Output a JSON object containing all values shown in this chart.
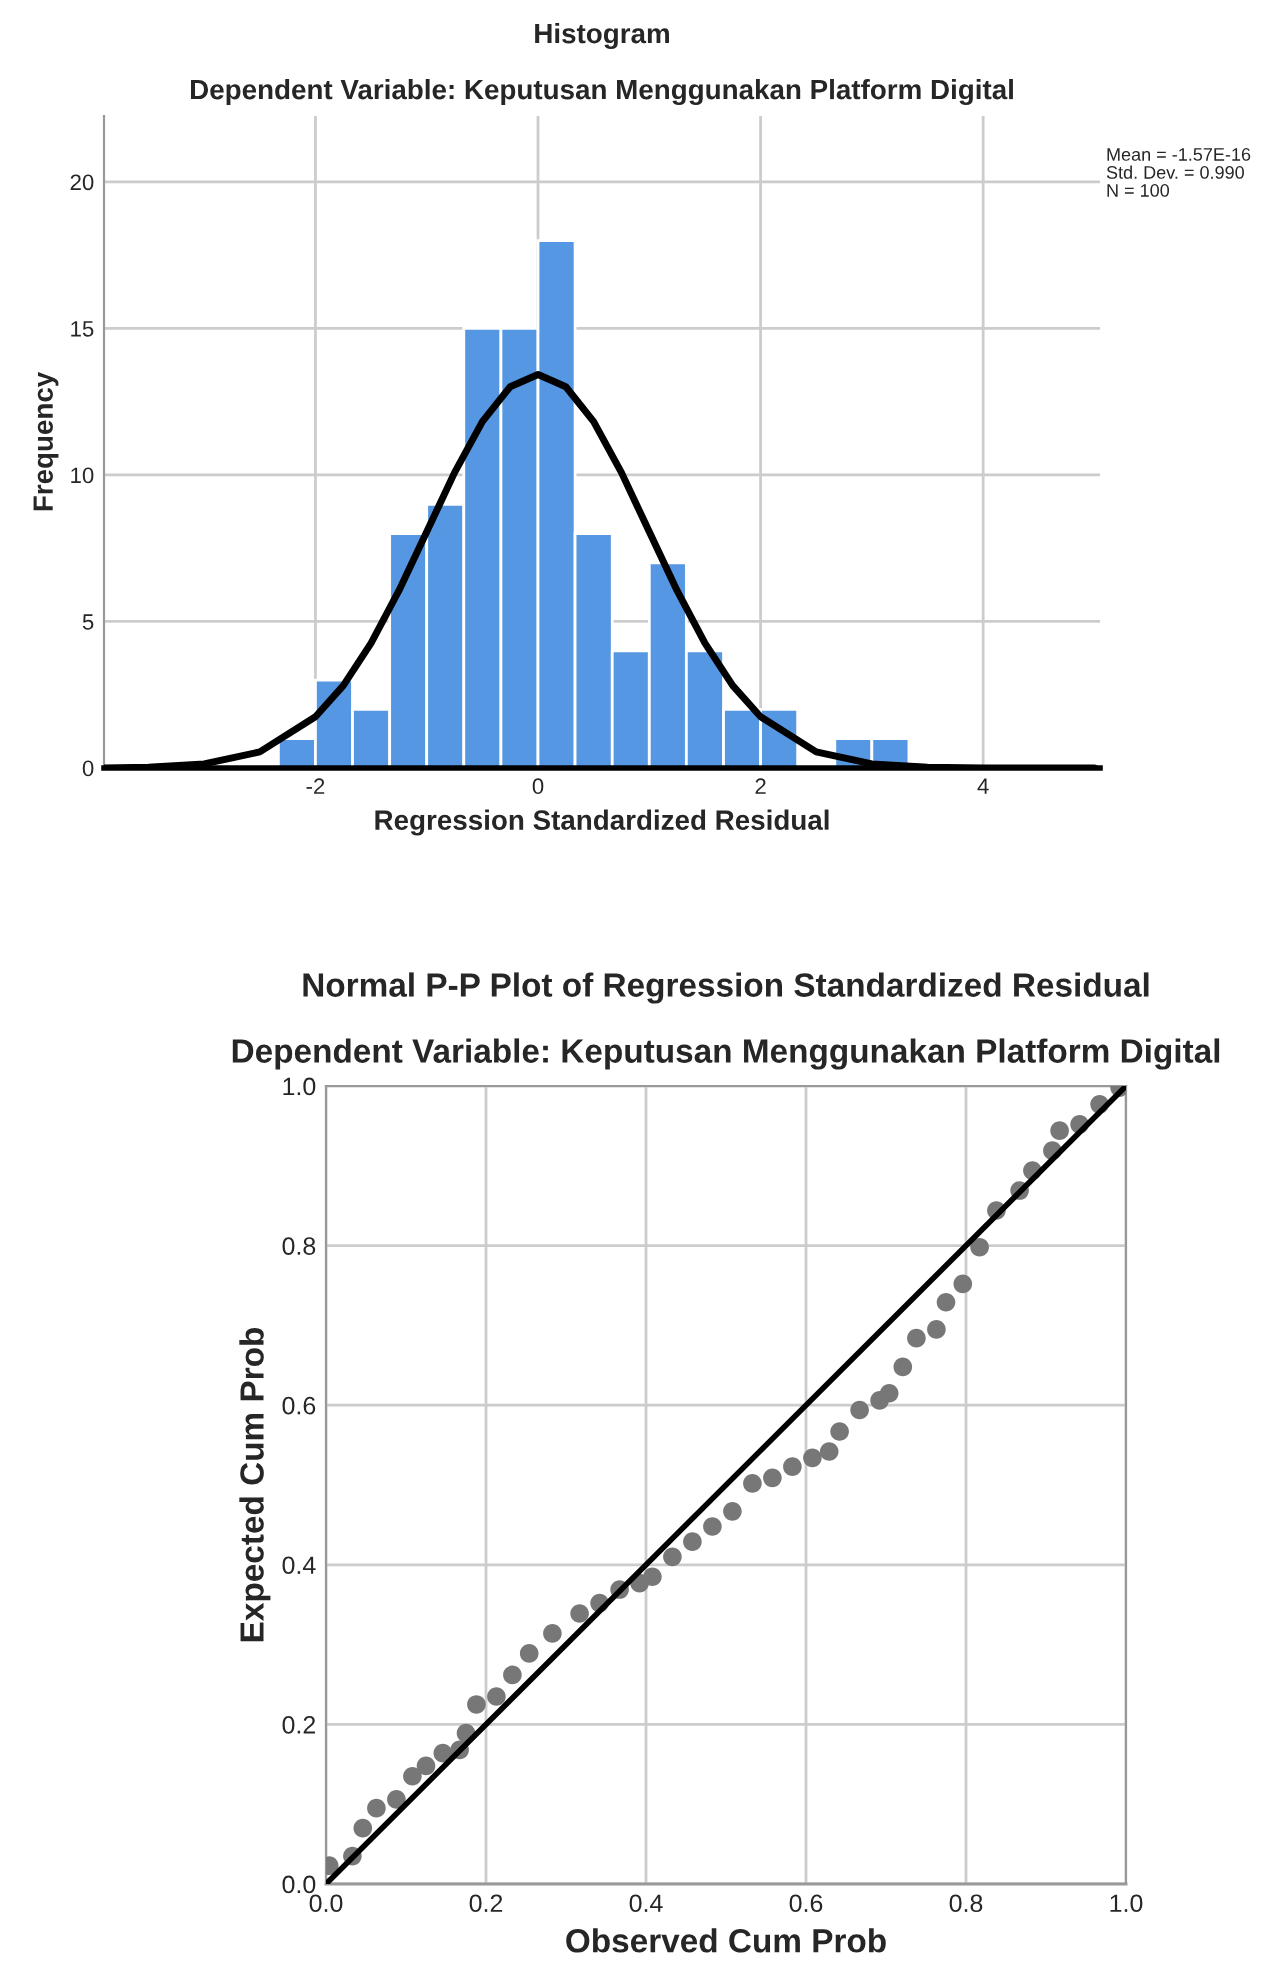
{
  "chart_data": [
    {
      "type": "histogram",
      "title": "Histogram",
      "subtitle": "Dependent Variable: Keputusan Menggunakan Platform Digital",
      "xlabel": "Regression Standardized Residual",
      "ylabel": "Frequency",
      "bins": [
        -2.333,
        -2.0,
        -1.667,
        -1.333,
        -1.0,
        -0.667,
        -0.333,
        0.0,
        0.333,
        0.667,
        1.0,
        1.333,
        1.667,
        2.0,
        2.333,
        2.667,
        3.0,
        3.333
      ],
      "values": [
        1,
        3,
        2,
        8,
        9,
        15,
        15,
        18,
        8,
        4,
        7,
        4,
        2,
        2,
        0,
        1,
        1
      ],
      "color": "#5597e2",
      "series": [
        {
          "type": "line",
          "color": "#000000",
          "x": [
            -3.9,
            -3.5,
            -3.0,
            -2.5,
            -2.0,
            -1.75,
            -1.5,
            -1.25,
            -1.0,
            -0.75,
            -0.5,
            -0.25,
            0.0,
            0.25,
            0.5,
            0.75,
            1.0,
            1.25,
            1.5,
            1.75,
            2.0,
            2.5,
            3.0,
            3.5,
            4.0,
            4.5,
            5.0
          ],
          "values": [
            0.0,
            0.03,
            0.14,
            0.55,
            1.75,
            2.81,
            4.26,
            6.05,
            8.06,
            10.08,
            11.82,
            13.01,
            13.43,
            13.01,
            11.82,
            10.08,
            8.06,
            6.05,
            4.26,
            2.81,
            1.75,
            0.55,
            0.14,
            0.03,
            0.0,
            0.0,
            0.0
          ]
        }
      ],
      "xlim": [
        -3.9,
        5.05
      ],
      "xticks": [
        -2,
        0,
        2,
        4
      ],
      "ylim": [
        0,
        22.25
      ],
      "yticks": [
        0,
        5,
        10,
        15,
        20
      ],
      "grid": true,
      "annotations": [
        "Mean = -1.57E-16",
        "Std. Dev. = 0.990",
        "N = 100"
      ]
    },
    {
      "type": "scatter",
      "title": "Normal P-P Plot of Regression Standardized Residual",
      "subtitle": "Dependent Variable: Keputusan Menggunakan Platform Digital",
      "xlabel": "Observed Cum Prob",
      "ylabel": "Expected Cum Prob",
      "series": [
        {
          "type": "scatter",
          "color": "#777777",
          "marker": "circle",
          "x": [
            0.004,
            0.033,
            0.046,
            0.063,
            0.088,
            0.108,
            0.125,
            0.146,
            0.167,
            0.175,
            0.188,
            0.213,
            0.233,
            0.254,
            0.283,
            0.317,
            0.342,
            0.367,
            0.392,
            0.408,
            0.433,
            0.458,
            0.483,
            0.508,
            0.533,
            0.558,
            0.583,
            0.608,
            0.629,
            0.642,
            0.667,
            0.692,
            0.704,
            0.721,
            0.738,
            0.763,
            0.775,
            0.796,
            0.817,
            0.838,
            0.867,
            0.883,
            0.908,
            0.917,
            0.942,
            0.967,
            0.992
          ],
          "values": [
            0.023,
            0.035,
            0.07,
            0.095,
            0.106,
            0.135,
            0.148,
            0.164,
            0.168,
            0.189,
            0.225,
            0.235,
            0.262,
            0.289,
            0.314,
            0.339,
            0.352,
            0.369,
            0.377,
            0.385,
            0.41,
            0.429,
            0.448,
            0.467,
            0.502,
            0.509,
            0.523,
            0.534,
            0.542,
            0.567,
            0.594,
            0.606,
            0.615,
            0.648,
            0.684,
            0.695,
            0.729,
            0.752,
            0.798,
            0.844,
            0.869,
            0.894,
            0.919,
            0.944,
            0.952,
            0.977,
            0.998
          ]
        },
        {
          "type": "line",
          "color": "#000000",
          "x": [
            0.0,
            1.0
          ],
          "values": [
            0.0,
            1.0
          ]
        }
      ],
      "xlim": [
        0,
        1
      ],
      "ylim": [
        0,
        1
      ],
      "xticks": [
        {
          "value": 0.0,
          "label": "0.0"
        },
        {
          "value": 0.2,
          "label": "0.2"
        },
        {
          "value": 0.4,
          "label": "0.4"
        },
        {
          "value": 0.6,
          "label": "0.6"
        },
        {
          "value": 0.8,
          "label": "0.8"
        },
        {
          "value": 1.0,
          "label": "1.0"
        }
      ],
      "yticks": [
        {
          "value": 0.0,
          "label": "0.0"
        },
        {
          "value": 0.2,
          "label": "0.2"
        },
        {
          "value": 0.4,
          "label": "0.4"
        },
        {
          "value": 0.6,
          "label": "0.6"
        },
        {
          "value": 0.8,
          "label": "0.8"
        },
        {
          "value": 1.0,
          "label": "1.0"
        }
      ],
      "grid": true
    }
  ]
}
